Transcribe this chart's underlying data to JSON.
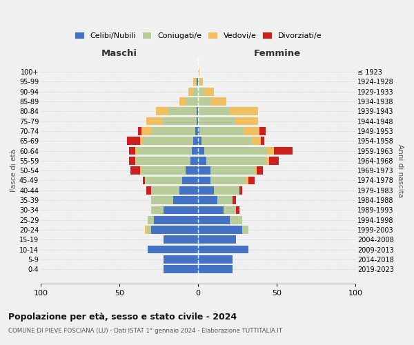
{
  "age_groups": [
    "0-4",
    "5-9",
    "10-14",
    "15-19",
    "20-24",
    "25-29",
    "30-34",
    "35-39",
    "40-44",
    "45-49",
    "50-54",
    "55-59",
    "60-64",
    "65-69",
    "70-74",
    "75-79",
    "80-84",
    "85-89",
    "90-94",
    "95-99",
    "100+"
  ],
  "birth_years": [
    "2019-2023",
    "2014-2018",
    "2009-2013",
    "2004-2008",
    "1999-2003",
    "1994-1998",
    "1989-1993",
    "1984-1988",
    "1979-1983",
    "1974-1978",
    "1969-1973",
    "1964-1968",
    "1959-1963",
    "1954-1958",
    "1949-1953",
    "1944-1948",
    "1939-1943",
    "1934-1938",
    "1929-1933",
    "1924-1928",
    "≤ 1923"
  ],
  "male": {
    "celibi": [
      22,
      22,
      32,
      22,
      30,
      28,
      22,
      16,
      12,
      10,
      8,
      5,
      4,
      3,
      2,
      1,
      1,
      0,
      0,
      1,
      0
    ],
    "coniugati": [
      0,
      0,
      0,
      0,
      2,
      4,
      8,
      14,
      18,
      24,
      28,
      34,
      34,
      32,
      28,
      22,
      18,
      8,
      3,
      1,
      0
    ],
    "vedovi": [
      0,
      0,
      0,
      0,
      2,
      0,
      0,
      0,
      0,
      0,
      1,
      1,
      2,
      2,
      6,
      10,
      8,
      4,
      3,
      1,
      0
    ],
    "divorziati": [
      0,
      0,
      0,
      0,
      0,
      0,
      0,
      0,
      3,
      1,
      6,
      4,
      4,
      8,
      2,
      0,
      0,
      0,
      0,
      0,
      0
    ]
  },
  "female": {
    "nubili": [
      22,
      22,
      32,
      24,
      28,
      20,
      16,
      12,
      10,
      8,
      8,
      5,
      4,
      2,
      1,
      0,
      0,
      0,
      0,
      0,
      0
    ],
    "coniugate": [
      0,
      0,
      0,
      0,
      4,
      8,
      8,
      10,
      16,
      22,
      28,
      38,
      40,
      32,
      28,
      24,
      20,
      8,
      4,
      1,
      0
    ],
    "vedove": [
      0,
      0,
      0,
      0,
      0,
      0,
      0,
      0,
      0,
      2,
      1,
      2,
      4,
      6,
      10,
      14,
      18,
      10,
      6,
      2,
      1
    ],
    "divorziate": [
      0,
      0,
      0,
      0,
      0,
      0,
      2,
      2,
      2,
      4,
      4,
      6,
      12,
      2,
      4,
      0,
      0,
      0,
      0,
      0,
      0
    ]
  },
  "colors": {
    "celibi": "#4472c4",
    "coniugati": "#b8cc9a",
    "vedovi": "#f0c060",
    "divorziati": "#cc2020"
  },
  "title1": "Popolazione per età, sesso e stato civile - 2024",
  "title2": "COMUNE DI PIEVE FOSCIANA (LU) - Dati ISTAT 1° gennaio 2024 - Elaborazione TUTTITALIA.IT",
  "xlabel_left": "Maschi",
  "xlabel_right": "Femmine",
  "ylabel_left": "Fasce di età",
  "ylabel_right": "Anni di nascita",
  "xlim": 100,
  "bg_color": "#f0f0f0",
  "legend_labels": [
    "Celibi/Nubili",
    "Coniugati/e",
    "Vedovi/e",
    "Divorziati/e"
  ]
}
